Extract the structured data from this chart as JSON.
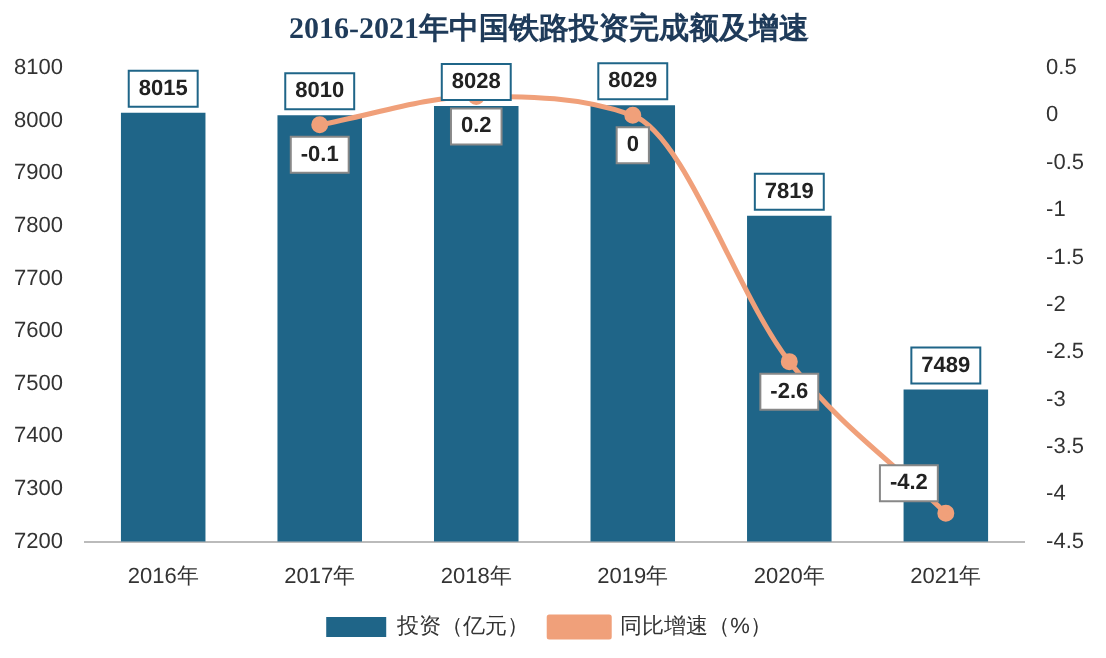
{
  "chart_data": {
    "type": "bar",
    "title": "2016-2021年中国铁路投资完成额及增速",
    "categories": [
      "2016年",
      "2017年",
      "2018年",
      "2019年",
      "2020年",
      "2021年"
    ],
    "series": [
      {
        "name": "投资（亿元）",
        "color": "#1f6588",
        "values": [
          8015,
          8010,
          8028,
          8029,
          7819,
          7489
        ]
      },
      {
        "name": "同比增速（%）",
        "type": "line",
        "axis": "y2",
        "color": "#f0a07a",
        "values": [
          null,
          -0.1,
          0.2,
          0,
          -2.6,
          -4.2
        ]
      }
    ],
    "ylim": [
      7200,
      8100
    ],
    "yticks": [
      7200,
      7300,
      7400,
      7500,
      7600,
      7700,
      7800,
      7900,
      8000,
      8100
    ],
    "y2lim": [
      -4.5,
      0.5
    ],
    "y2ticks": [
      -4.5,
      -4,
      -3.5,
      -3,
      -2.5,
      -2,
      -1.5,
      -1,
      -0.5,
      0,
      0.5
    ],
    "data_labels": true,
    "legend": "bottom",
    "grid": false,
    "marker": "circle",
    "line_style": "solid"
  }
}
